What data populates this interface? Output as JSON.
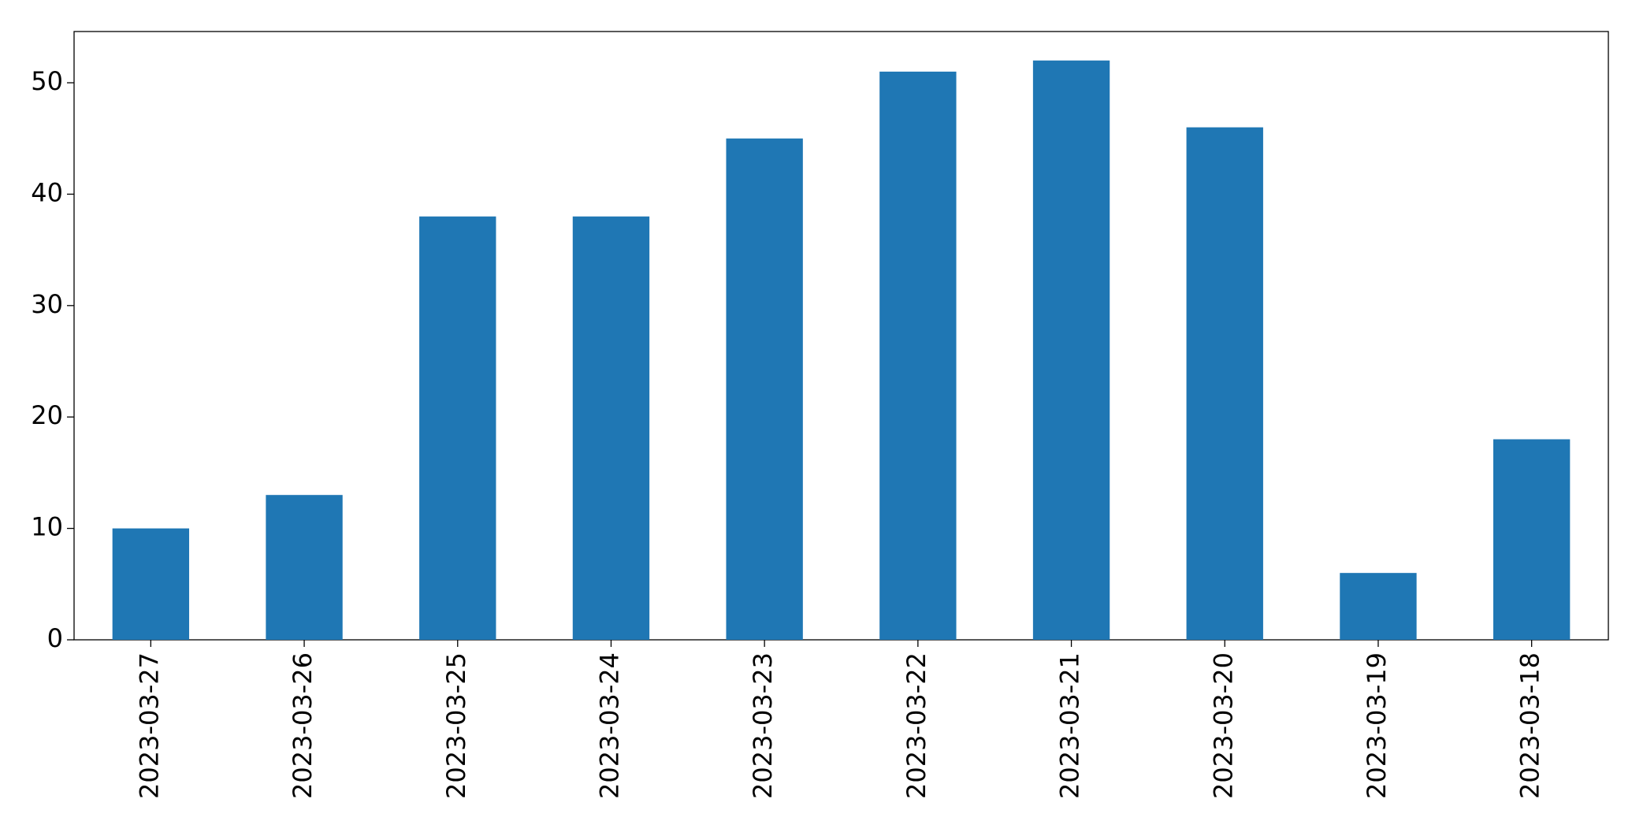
{
  "chart_data": {
    "type": "bar",
    "categories": [
      "2023-03-27",
      "2023-03-26",
      "2023-03-25",
      "2023-03-24",
      "2023-03-23",
      "2023-03-22",
      "2023-03-21",
      "2023-03-20",
      "2023-03-19",
      "2023-03-18"
    ],
    "values": [
      10,
      13,
      38,
      38,
      45,
      51,
      52,
      46,
      6,
      18
    ],
    "color": "#1f77b4",
    "ylim": [
      0,
      54.6
    ],
    "yticks": [
      0,
      10,
      20,
      30,
      40,
      50
    ],
    "grid": false
  }
}
